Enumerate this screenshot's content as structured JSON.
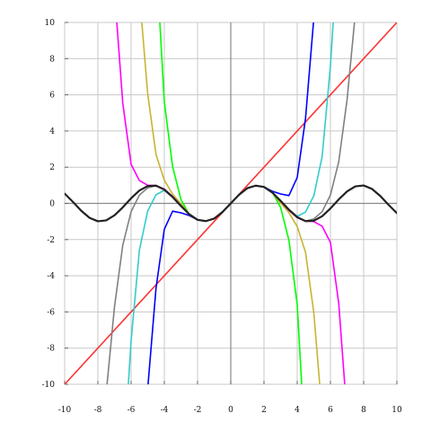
{
  "chart_data": {
    "type": "line",
    "title": "",
    "xlabel": "",
    "ylabel": "",
    "xlim": [
      -10,
      10
    ],
    "ylim": [
      -10,
      10
    ],
    "grid": true,
    "x_ticks": [
      -10,
      -8,
      -6,
      -4,
      -2,
      0,
      2,
      4,
      6,
      8,
      10
    ],
    "y_ticks": [
      -10,
      -8,
      -6,
      -4,
      -2,
      0,
      2,
      4,
      6,
      8,
      10
    ],
    "x_tick_labels": [
      "-10",
      "-8",
      "-6",
      "-4",
      "-2",
      "0",
      "2",
      "4",
      "6",
      "8",
      "10"
    ],
    "y_tick_labels": [
      "-10",
      "-8",
      "-6",
      "-4",
      "-2",
      "0",
      "2",
      "4",
      "6",
      "8",
      "10"
    ],
    "series": [
      {
        "color": "#ff3333",
        "x": [
          -10,
          10
        ],
        "y": [
          -10,
          10
        ]
      },
      {
        "color": "#0000ff",
        "x": [
          -5,
          -4.5,
          -4,
          -3.5,
          -3,
          -2.5,
          -2,
          -1.5,
          -1,
          -0.5,
          0,
          0.5,
          1,
          1.5,
          2,
          2.5,
          3,
          3.5,
          4,
          4.5,
          5
        ],
        "y": [
          -10.24,
          -4.69,
          -1.43,
          -0.43,
          -0.52,
          -0.67,
          -0.91,
          -0.98,
          -0.84,
          -0.48,
          0,
          0.48,
          0.84,
          0.98,
          0.91,
          0.67,
          0.52,
          0.43,
          1.43,
          4.69,
          10.24
        ]
      },
      {
        "color": "#33cccc",
        "x": [
          -6.2,
          -6,
          -5.5,
          -5,
          -4.5,
          -4,
          -3.5,
          -3,
          -2.5,
          -2,
          -1.5,
          -1,
          -0.5,
          0,
          0.5,
          1,
          1.5,
          2,
          2.5,
          3,
          3.5,
          4,
          4.5,
          5,
          5.5,
          6,
          6.2
        ],
        "y": [
          -10.5,
          -7.59,
          -2.58,
          -0.42,
          0.48,
          0.72,
          0.34,
          -0.13,
          -0.6,
          -0.91,
          -0.98,
          -0.84,
          -0.48,
          0,
          0.48,
          0.84,
          0.98,
          0.91,
          0.6,
          0.13,
          -0.34,
          -0.72,
          -0.48,
          0.42,
          2.58,
          7.59,
          10.5
        ]
      },
      {
        "color": "#808080",
        "x": [
          -7.5,
          -7,
          -6.5,
          -6,
          -5.5,
          -5,
          -4.5,
          -4,
          -3.5,
          -3,
          -2.5,
          -2,
          -1.5,
          -1,
          -0.5,
          0,
          0.5,
          1,
          1.5,
          2,
          2.5,
          3,
          3.5,
          4,
          4.5,
          5,
          5.5,
          6,
          6.5,
          7,
          7.5
        ],
        "y": [
          -10.5,
          -5.72,
          -2.3,
          -0.46,
          0.46,
          0.86,
          0.98,
          0.79,
          0.38,
          -0.12,
          -0.6,
          -0.91,
          -0.98,
          -0.84,
          -0.48,
          0,
          0.48,
          0.84,
          0.98,
          0.91,
          0.6,
          0.12,
          -0.38,
          -0.79,
          -0.98,
          -0.86,
          -0.46,
          0.46,
          2.3,
          5.72,
          10.5
        ]
      },
      {
        "color": "#00ff00",
        "x": [
          -4.3,
          -4,
          -3.5,
          -3,
          -2.5,
          -2,
          -1.5,
          -1,
          -0.5,
          0,
          0.5,
          1,
          1.5,
          2,
          2.5,
          3,
          3.5,
          4,
          4.3
        ],
        "y": [
          10.5,
          5.6,
          2.03,
          0.22,
          -0.62,
          -0.91,
          -0.98,
          -0.84,
          -0.48,
          0,
          0.48,
          0.84,
          0.98,
          0.91,
          0.62,
          -0.22,
          -2.03,
          -5.6,
          -10.5
        ]
      },
      {
        "color": "#c8b432",
        "x": [
          -5.4,
          -5,
          -4.5,
          -4,
          -3.5,
          -3,
          -2.5,
          -2,
          -1.5,
          -1,
          -0.5,
          0,
          0.5,
          1,
          1.5,
          2,
          2.5,
          3,
          3.5,
          4,
          4.5,
          5,
          5.4
        ],
        "y": [
          10.5,
          6.05,
          2.7,
          1.28,
          0.51,
          -0.02,
          -0.6,
          -0.91,
          -0.98,
          -0.84,
          -0.48,
          0,
          0.48,
          0.84,
          0.98,
          0.91,
          0.6,
          0.02,
          -0.51,
          -1.28,
          -2.7,
          -6.05,
          -10.5
        ]
      },
      {
        "color": "#ff00ff",
        "x": [
          -6.9,
          -6.5,
          -6,
          -5.5,
          -5,
          -4.5,
          -4,
          -3.5,
          -3,
          -2.5,
          -2,
          -1.5,
          -1,
          -0.5,
          0,
          0.5,
          1,
          1.5,
          2,
          2.5,
          3,
          3.5,
          4,
          4.5,
          5,
          5.5,
          6,
          6.5,
          6.9
        ],
        "y": [
          10.5,
          5.53,
          2.16,
          1.26,
          1.0,
          0.98,
          0.79,
          0.38,
          -0.12,
          -0.6,
          -0.91,
          -0.98,
          -0.84,
          -0.48,
          0,
          0.48,
          0.84,
          0.98,
          0.91,
          0.6,
          0.12,
          -0.38,
          -0.79,
          -0.98,
          -1.0,
          -1.26,
          -2.16,
          -5.53,
          -10.5
        ]
      },
      {
        "color": "#222222",
        "x": [
          -10,
          -9.5,
          -9,
          -8.5,
          -8,
          -7.5,
          -7,
          -6.5,
          -6,
          -5.5,
          -5,
          -4.5,
          -4,
          -3.5,
          -3,
          -2.5,
          -2,
          -1.5,
          -1,
          -0.5,
          0,
          0.5,
          1,
          1.5,
          2,
          2.5,
          3,
          3.5,
          4,
          4.5,
          5,
          5.5,
          6,
          6.5,
          7,
          7.5,
          8,
          8.5,
          9,
          9.5,
          10
        ],
        "y": [
          0.54,
          0.08,
          -0.41,
          -0.8,
          -0.99,
          -0.94,
          -0.66,
          -0.22,
          0.28,
          0.71,
          0.96,
          0.98,
          0.76,
          0.35,
          -0.14,
          -0.6,
          -0.91,
          -0.98,
          -0.84,
          -0.48,
          0,
          0.48,
          0.84,
          0.98,
          0.91,
          0.6,
          0.14,
          -0.35,
          -0.76,
          -0.98,
          -0.96,
          -0.71,
          -0.28,
          0.22,
          0.66,
          0.94,
          0.99,
          0.8,
          0.41,
          -0.08,
          -0.54
        ]
      }
    ]
  }
}
